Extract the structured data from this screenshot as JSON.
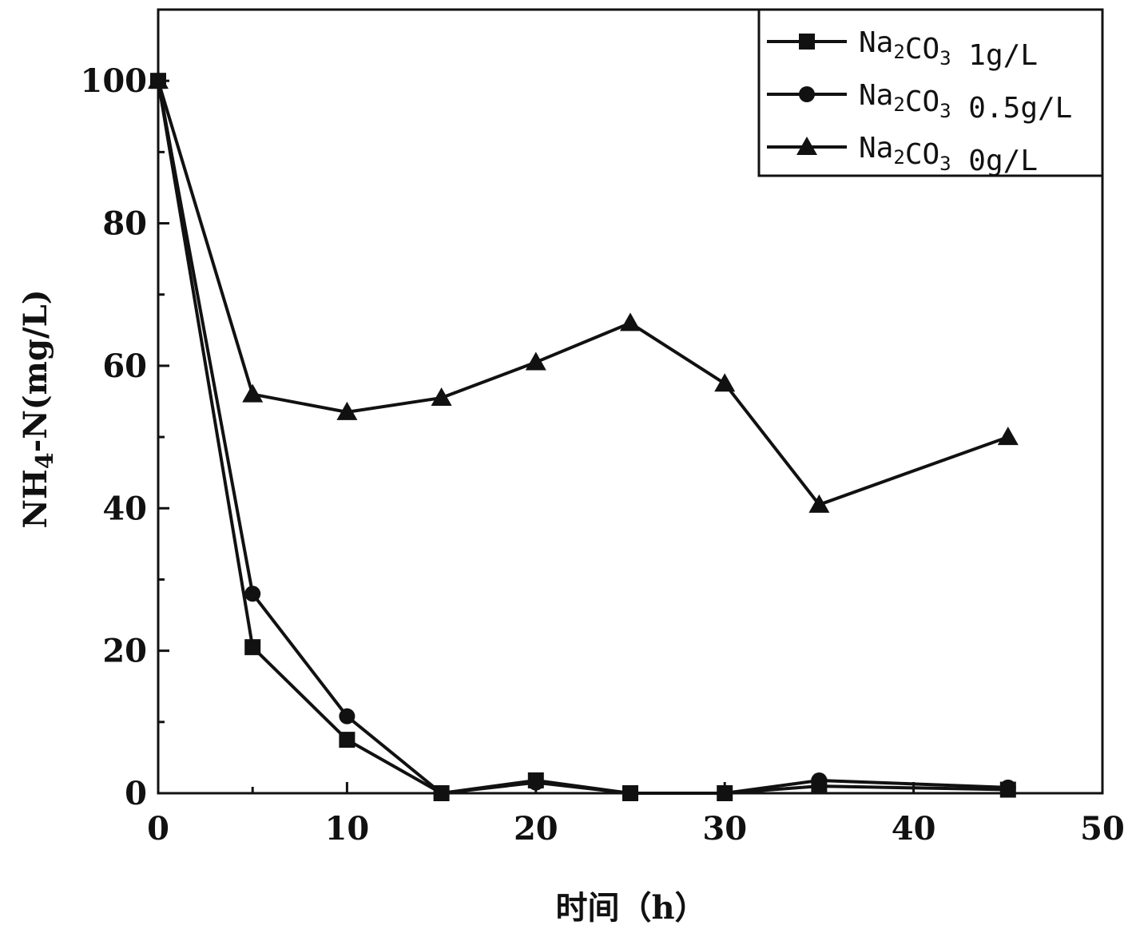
{
  "chart_data": {
    "type": "line",
    "xlabel": "时间（h）",
    "ylabel": "NH4-N(mg/L)",
    "xlim": [
      0,
      50
    ],
    "ylim": [
      0,
      110
    ],
    "xticks": [
      0,
      10,
      20,
      30,
      40,
      50
    ],
    "yticks": [
      0,
      20,
      40,
      60,
      80,
      100
    ],
    "grid": false,
    "legend_position": "top-right",
    "x": [
      0,
      5,
      10,
      15,
      20,
      25,
      30,
      35,
      45
    ],
    "series": [
      {
        "name": "Na2CO3 1g/L",
        "legend_base": "Na",
        "legend_sub1": "2",
        "legend_mid": "CO",
        "legend_sub2": "3",
        "legend_tail": "1g/L",
        "marker": "square",
        "values": [
          100,
          20.5,
          7.5,
          0,
          1.8,
          0,
          0,
          1.0,
          0.5
        ]
      },
      {
        "name": "Na2CO3 0.5g/L",
        "legend_base": "Na",
        "legend_sub1": "2",
        "legend_mid": "CO",
        "legend_sub2": "3",
        "legend_tail": "0.5g/L",
        "marker": "circle",
        "values": [
          100,
          28,
          10.8,
          0,
          1.5,
          0,
          0,
          1.8,
          0.8
        ]
      },
      {
        "name": "Na2CO3 0g/L",
        "legend_base": "Na",
        "legend_sub1": "2",
        "legend_mid": "CO",
        "legend_sub2": "3",
        "legend_tail": "0g/L",
        "marker": "triangle",
        "values": [
          100,
          56,
          53.5,
          55.5,
          60.5,
          66,
          57.5,
          40.5,
          50
        ]
      }
    ],
    "line_color": "#111111"
  }
}
